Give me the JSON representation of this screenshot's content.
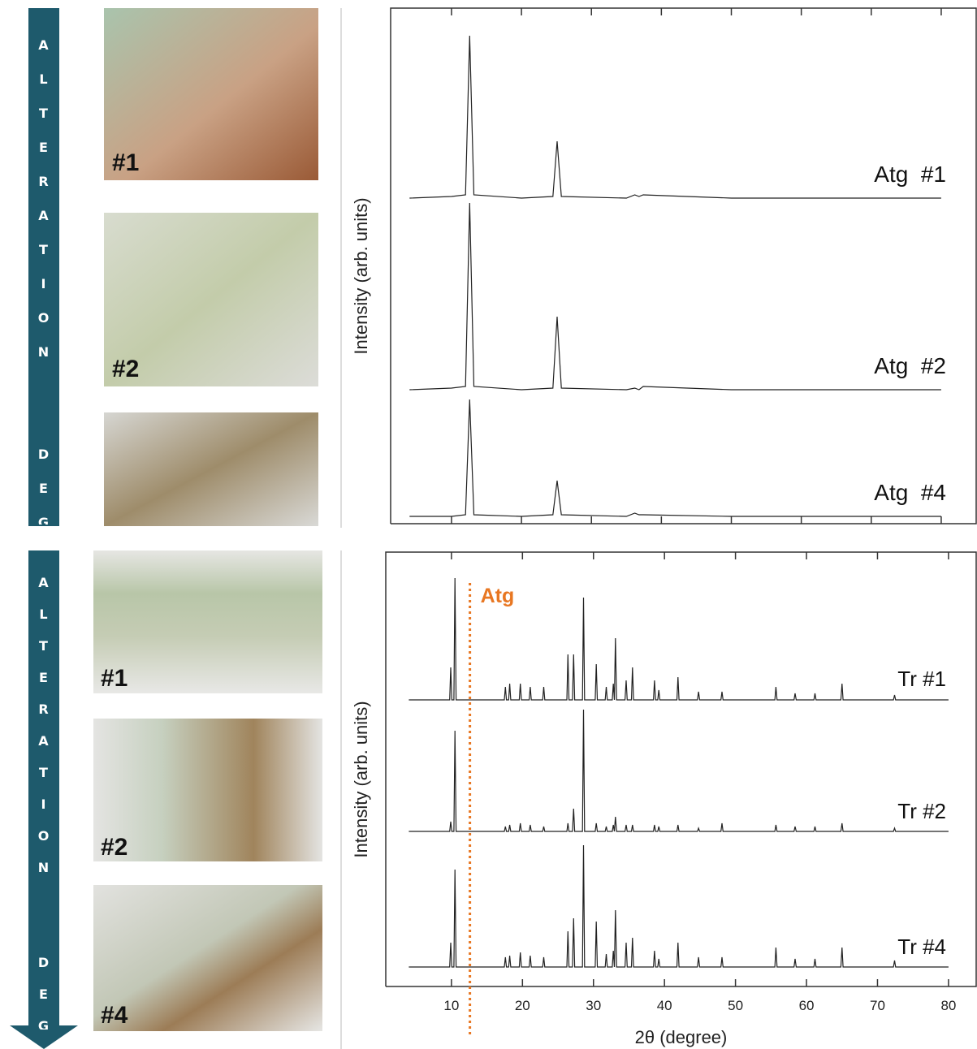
{
  "arrows": [
    "ALTERATION  DEGR",
    "ALTERATION  DEGREE"
  ],
  "photos": {
    "top": [
      "#1",
      "#2"
    ],
    "bottom": [
      "#1",
      "#2",
      "#4"
    ]
  },
  "chart_data": [
    {
      "type": "line",
      "ylabel": "Intensity (arb. units)",
      "xlim": [
        1.3,
        85
      ],
      "xticks": [
        10,
        20,
        30,
        40,
        50,
        60,
        70,
        80
      ],
      "tick_labels": false,
      "x": [
        4,
        10,
        12.0,
        12.6,
        13.2,
        20,
        24.5,
        25.1,
        25.7,
        35,
        36.2,
        36.8,
        37.4,
        50,
        80
      ],
      "series": [
        {
          "name": "Atg  #1",
          "color": "#222222",
          "values": [
            0,
            1,
            2,
            100,
            2,
            0,
            1,
            35,
            1,
            0,
            2,
            1,
            2,
            0,
            0
          ]
        },
        {
          "name": "Atg  #2",
          "color": "#222222",
          "values": [
            0,
            1,
            2,
            115,
            2,
            0,
            1,
            45,
            1,
            0,
            1,
            0,
            2,
            0,
            0
          ]
        },
        {
          "name": "Atg  #4",
          "color": "#222222",
          "values": [
            0,
            0,
            1,
            72,
            1,
            0,
            1,
            22,
            1,
            0,
            2,
            1,
            1,
            0,
            0
          ]
        }
      ]
    },
    {
      "type": "line",
      "ylabel": "Intensity (arb. units)",
      "xlabel": "2θ (degree)",
      "xlim": [
        0.75,
        83.9
      ],
      "xticks": [
        10,
        20,
        30,
        40,
        50,
        60,
        70,
        80
      ],
      "tick_labels": true,
      "annotation": {
        "text": "Atg",
        "x": 12.6,
        "color": "#e87722"
      },
      "x": [
        4,
        9.75,
        9.9,
        10.05,
        10.35,
        10.5,
        10.65,
        17.45,
        17.6,
        17.75,
        18.05,
        18.2,
        18.35,
        19.55,
        19.7,
        19.85,
        20.95,
        21.1,
        21.25,
        22.85,
        23,
        23.15,
        26.25,
        26.4,
        26.55,
        27.05,
        27.2,
        27.35,
        28.45,
        28.6,
        28.75,
        30.25,
        30.4,
        30.55,
        31.65,
        31.8,
        31.95,
        32.65,
        32.8,
        32.95,
        32.95,
        33.1,
        33.25,
        34.45,
        34.6,
        34.75,
        35.35,
        35.5,
        35.65,
        38.45,
        38.6,
        38.75,
        39.05,
        39.2,
        39.35,
        41.75,
        41.9,
        42.05,
        44.65,
        44.8,
        44.95,
        47.95,
        48.1,
        48.25,
        55.55,
        55.7,
        55.85,
        58.25,
        58.4,
        58.55,
        61.05,
        61.2,
        61.35,
        64.85,
        65,
        65.15,
        72.25,
        72.4,
        72.55,
        80
      ],
      "series": [
        {
          "name": "Tr #1",
          "color": "#222222",
          "values": [
            0,
            0,
            20,
            0,
            0,
            75,
            0,
            0,
            8,
            0,
            0,
            10,
            0,
            0,
            10,
            0,
            0,
            8,
            0,
            0,
            8,
            0,
            0,
            28,
            0,
            0,
            28,
            0,
            0,
            63,
            0,
            0,
            22,
            0,
            0,
            8,
            0,
            0,
            10,
            0,
            0,
            38,
            0,
            0,
            12,
            0,
            0,
            20,
            0,
            0,
            12,
            0,
            0,
            6,
            0,
            0,
            14,
            0,
            0,
            5,
            0,
            0,
            5,
            0,
            0,
            8,
            0,
            0,
            4,
            0,
            0,
            4,
            0,
            0,
            10,
            0,
            0,
            3,
            0,
            0
          ]
        },
        {
          "name": "Tr #2",
          "color": "#222222",
          "values": [
            0,
            0,
            6,
            0,
            0,
            62,
            0,
            0,
            3,
            0,
            0,
            4,
            0,
            0,
            5,
            0,
            0,
            4,
            0,
            0,
            3,
            0,
            0,
            5,
            0,
            0,
            14,
            0,
            0,
            75,
            0,
            0,
            5,
            0,
            0,
            3,
            0,
            0,
            4,
            0,
            0,
            9,
            0,
            0,
            4,
            0,
            0,
            4,
            0,
            0,
            4,
            0,
            0,
            3,
            0,
            0,
            4,
            0,
            0,
            2,
            0,
            0,
            5,
            0,
            0,
            4,
            0,
            0,
            3,
            0,
            0,
            3,
            0,
            0,
            5,
            0,
            0,
            2,
            0,
            0
          ]
        },
        {
          "name": "Tr #4",
          "color": "#222222",
          "values": [
            0,
            0,
            15,
            0,
            0,
            60,
            0,
            0,
            6,
            0,
            0,
            7,
            0,
            0,
            9,
            0,
            0,
            7,
            0,
            0,
            6,
            0,
            0,
            22,
            0,
            0,
            30,
            0,
            0,
            75,
            0,
            0,
            28,
            0,
            0,
            8,
            0,
            0,
            10,
            0,
            0,
            35,
            0,
            0,
            15,
            0,
            0,
            18,
            0,
            0,
            10,
            0,
            0,
            5,
            0,
            0,
            15,
            0,
            0,
            6,
            0,
            0,
            6,
            0,
            0,
            12,
            0,
            0,
            5,
            0,
            0,
            5,
            0,
            0,
            12,
            0,
            0,
            4,
            0,
            0
          ]
        }
      ]
    }
  ]
}
